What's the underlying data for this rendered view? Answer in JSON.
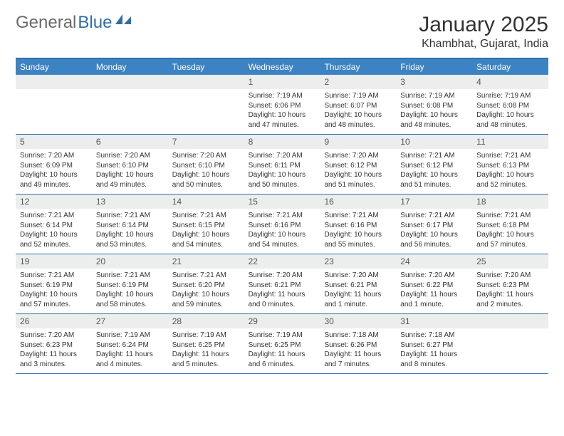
{
  "logo": {
    "text_part1": "General",
    "text_part2": "Blue",
    "text_color_gray": "#6b6b6b",
    "text_color_blue": "#2f6fa8",
    "icon_color": "#2f6fa8"
  },
  "header": {
    "month_title": "January 2025",
    "location": "Khambhat, Gujarat, India"
  },
  "colors": {
    "header_bar": "#3c83c4",
    "border": "#2f6fa8",
    "day_num_bg": "#eceded",
    "text": "#333333",
    "white": "#ffffff"
  },
  "day_names": [
    "Sunday",
    "Monday",
    "Tuesday",
    "Wednesday",
    "Thursday",
    "Friday",
    "Saturday"
  ],
  "weeks": [
    [
      {
        "empty": true
      },
      {
        "empty": true
      },
      {
        "empty": true
      },
      {
        "num": "1",
        "sunrise": "Sunrise: 7:19 AM",
        "sunset": "Sunset: 6:06 PM",
        "daylight": "Daylight: 10 hours and 47 minutes."
      },
      {
        "num": "2",
        "sunrise": "Sunrise: 7:19 AM",
        "sunset": "Sunset: 6:07 PM",
        "daylight": "Daylight: 10 hours and 48 minutes."
      },
      {
        "num": "3",
        "sunrise": "Sunrise: 7:19 AM",
        "sunset": "Sunset: 6:08 PM",
        "daylight": "Daylight: 10 hours and 48 minutes."
      },
      {
        "num": "4",
        "sunrise": "Sunrise: 7:19 AM",
        "sunset": "Sunset: 6:08 PM",
        "daylight": "Daylight: 10 hours and 48 minutes."
      }
    ],
    [
      {
        "num": "5",
        "sunrise": "Sunrise: 7:20 AM",
        "sunset": "Sunset: 6:09 PM",
        "daylight": "Daylight: 10 hours and 49 minutes."
      },
      {
        "num": "6",
        "sunrise": "Sunrise: 7:20 AM",
        "sunset": "Sunset: 6:10 PM",
        "daylight": "Daylight: 10 hours and 49 minutes."
      },
      {
        "num": "7",
        "sunrise": "Sunrise: 7:20 AM",
        "sunset": "Sunset: 6:10 PM",
        "daylight": "Daylight: 10 hours and 50 minutes."
      },
      {
        "num": "8",
        "sunrise": "Sunrise: 7:20 AM",
        "sunset": "Sunset: 6:11 PM",
        "daylight": "Daylight: 10 hours and 50 minutes."
      },
      {
        "num": "9",
        "sunrise": "Sunrise: 7:20 AM",
        "sunset": "Sunset: 6:12 PM",
        "daylight": "Daylight: 10 hours and 51 minutes."
      },
      {
        "num": "10",
        "sunrise": "Sunrise: 7:21 AM",
        "sunset": "Sunset: 6:12 PM",
        "daylight": "Daylight: 10 hours and 51 minutes."
      },
      {
        "num": "11",
        "sunrise": "Sunrise: 7:21 AM",
        "sunset": "Sunset: 6:13 PM",
        "daylight": "Daylight: 10 hours and 52 minutes."
      }
    ],
    [
      {
        "num": "12",
        "sunrise": "Sunrise: 7:21 AM",
        "sunset": "Sunset: 6:14 PM",
        "daylight": "Daylight: 10 hours and 52 minutes."
      },
      {
        "num": "13",
        "sunrise": "Sunrise: 7:21 AM",
        "sunset": "Sunset: 6:14 PM",
        "daylight": "Daylight: 10 hours and 53 minutes."
      },
      {
        "num": "14",
        "sunrise": "Sunrise: 7:21 AM",
        "sunset": "Sunset: 6:15 PM",
        "daylight": "Daylight: 10 hours and 54 minutes."
      },
      {
        "num": "15",
        "sunrise": "Sunrise: 7:21 AM",
        "sunset": "Sunset: 6:16 PM",
        "daylight": "Daylight: 10 hours and 54 minutes."
      },
      {
        "num": "16",
        "sunrise": "Sunrise: 7:21 AM",
        "sunset": "Sunset: 6:16 PM",
        "daylight": "Daylight: 10 hours and 55 minutes."
      },
      {
        "num": "17",
        "sunrise": "Sunrise: 7:21 AM",
        "sunset": "Sunset: 6:17 PM",
        "daylight": "Daylight: 10 hours and 56 minutes."
      },
      {
        "num": "18",
        "sunrise": "Sunrise: 7:21 AM",
        "sunset": "Sunset: 6:18 PM",
        "daylight": "Daylight: 10 hours and 57 minutes."
      }
    ],
    [
      {
        "num": "19",
        "sunrise": "Sunrise: 7:21 AM",
        "sunset": "Sunset: 6:19 PM",
        "daylight": "Daylight: 10 hours and 57 minutes."
      },
      {
        "num": "20",
        "sunrise": "Sunrise: 7:21 AM",
        "sunset": "Sunset: 6:19 PM",
        "daylight": "Daylight: 10 hours and 58 minutes."
      },
      {
        "num": "21",
        "sunrise": "Sunrise: 7:21 AM",
        "sunset": "Sunset: 6:20 PM",
        "daylight": "Daylight: 10 hours and 59 minutes."
      },
      {
        "num": "22",
        "sunrise": "Sunrise: 7:20 AM",
        "sunset": "Sunset: 6:21 PM",
        "daylight": "Daylight: 11 hours and 0 minutes."
      },
      {
        "num": "23",
        "sunrise": "Sunrise: 7:20 AM",
        "sunset": "Sunset: 6:21 PM",
        "daylight": "Daylight: 11 hours and 1 minute."
      },
      {
        "num": "24",
        "sunrise": "Sunrise: 7:20 AM",
        "sunset": "Sunset: 6:22 PM",
        "daylight": "Daylight: 11 hours and 1 minute."
      },
      {
        "num": "25",
        "sunrise": "Sunrise: 7:20 AM",
        "sunset": "Sunset: 6:23 PM",
        "daylight": "Daylight: 11 hours and 2 minutes."
      }
    ],
    [
      {
        "num": "26",
        "sunrise": "Sunrise: 7:20 AM",
        "sunset": "Sunset: 6:23 PM",
        "daylight": "Daylight: 11 hours and 3 minutes."
      },
      {
        "num": "27",
        "sunrise": "Sunrise: 7:19 AM",
        "sunset": "Sunset: 6:24 PM",
        "daylight": "Daylight: 11 hours and 4 minutes."
      },
      {
        "num": "28",
        "sunrise": "Sunrise: 7:19 AM",
        "sunset": "Sunset: 6:25 PM",
        "daylight": "Daylight: 11 hours and 5 minutes."
      },
      {
        "num": "29",
        "sunrise": "Sunrise: 7:19 AM",
        "sunset": "Sunset: 6:25 PM",
        "daylight": "Daylight: 11 hours and 6 minutes."
      },
      {
        "num": "30",
        "sunrise": "Sunrise: 7:18 AM",
        "sunset": "Sunset: 6:26 PM",
        "daylight": "Daylight: 11 hours and 7 minutes."
      },
      {
        "num": "31",
        "sunrise": "Sunrise: 7:18 AM",
        "sunset": "Sunset: 6:27 PM",
        "daylight": "Daylight: 11 hours and 8 minutes."
      },
      {
        "empty": true
      }
    ]
  ]
}
